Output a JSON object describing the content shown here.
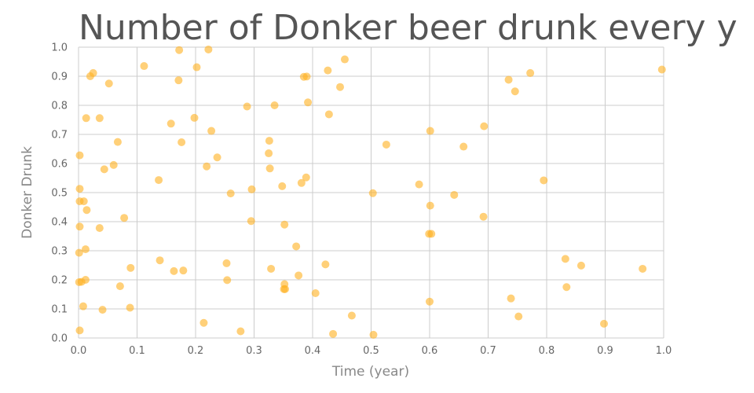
{
  "chart_data": {
    "type": "scatter",
    "title": "Number of Donker beer drunk every y",
    "xlabel": "Time (year)",
    "ylabel": "Donker Drunk",
    "xlim": [
      0,
      1
    ],
    "ylim": [
      0,
      1
    ],
    "xticks": [
      "0.0",
      "0.1",
      "0.2",
      "0.3",
      "0.4",
      "0.5",
      "0.6",
      "0.7",
      "0.8",
      "0.9",
      "1.0"
    ],
    "yticks": [
      "0.0",
      "0.1",
      "0.2",
      "0.3",
      "0.4",
      "0.5",
      "0.6",
      "0.7",
      "0.8",
      "0.9",
      "1.0"
    ],
    "grid": true,
    "legend": "none",
    "color": "#ffb020",
    "points": [
      [
        0.172,
        0.99
      ],
      [
        0.222,
        0.992
      ],
      [
        0.455,
        0.958
      ],
      [
        0.997,
        0.923
      ],
      [
        0.112,
        0.935
      ],
      [
        0.202,
        0.931
      ],
      [
        0.025,
        0.911
      ],
      [
        0.02,
        0.9
      ],
      [
        0.385,
        0.898
      ],
      [
        0.39,
        0.899
      ],
      [
        0.426,
        0.92
      ],
      [
        0.772,
        0.911
      ],
      [
        0.735,
        0.888
      ],
      [
        0.052,
        0.875
      ],
      [
        0.171,
        0.886
      ],
      [
        0.447,
        0.863
      ],
      [
        0.746,
        0.848
      ],
      [
        0.288,
        0.796
      ],
      [
        0.335,
        0.8
      ],
      [
        0.392,
        0.81
      ],
      [
        0.013,
        0.756
      ],
      [
        0.036,
        0.756
      ],
      [
        0.198,
        0.757
      ],
      [
        0.428,
        0.769
      ],
      [
        0.158,
        0.737
      ],
      [
        0.227,
        0.712
      ],
      [
        0.601,
        0.712
      ],
      [
        0.693,
        0.728
      ],
      [
        0.067,
        0.674
      ],
      [
        0.176,
        0.673
      ],
      [
        0.326,
        0.678
      ],
      [
        0.526,
        0.665
      ],
      [
        0.658,
        0.658
      ],
      [
        0.002,
        0.628
      ],
      [
        0.237,
        0.621
      ],
      [
        0.325,
        0.635
      ],
      [
        0.06,
        0.595
      ],
      [
        0.044,
        0.58
      ],
      [
        0.219,
        0.59
      ],
      [
        0.327,
        0.583
      ],
      [
        0.389,
        0.552
      ],
      [
        0.137,
        0.543
      ],
      [
        0.795,
        0.542
      ],
      [
        0.381,
        0.533
      ],
      [
        0.348,
        0.522
      ],
      [
        0.582,
        0.528
      ],
      [
        0.002,
        0.513
      ],
      [
        0.296,
        0.511
      ],
      [
        0.26,
        0.497
      ],
      [
        0.503,
        0.498
      ],
      [
        0.642,
        0.492
      ],
      [
        0.002,
        0.47
      ],
      [
        0.009,
        0.47
      ],
      [
        0.014,
        0.44
      ],
      [
        0.601,
        0.455
      ],
      [
        0.078,
        0.413
      ],
      [
        0.692,
        0.417
      ],
      [
        0.295,
        0.402
      ],
      [
        0.002,
        0.383
      ],
      [
        0.036,
        0.378
      ],
      [
        0.352,
        0.39
      ],
      [
        0.599,
        0.358
      ],
      [
        0.603,
        0.358
      ],
      [
        0.372,
        0.315
      ],
      [
        0.012,
        0.305
      ],
      [
        0.001,
        0.293
      ],
      [
        0.832,
        0.272
      ],
      [
        0.139,
        0.267
      ],
      [
        0.253,
        0.257
      ],
      [
        0.422,
        0.253
      ],
      [
        0.859,
        0.249
      ],
      [
        0.089,
        0.241
      ],
      [
        0.329,
        0.238
      ],
      [
        0.964,
        0.238
      ],
      [
        0.163,
        0.23
      ],
      [
        0.179,
        0.232
      ],
      [
        0.376,
        0.215
      ],
      [
        0.012,
        0.2
      ],
      [
        0.254,
        0.199
      ],
      [
        0.001,
        0.192
      ],
      [
        0.005,
        0.193
      ],
      [
        0.071,
        0.178
      ],
      [
        0.352,
        0.185
      ],
      [
        0.351,
        0.168
      ],
      [
        0.353,
        0.168
      ],
      [
        0.834,
        0.175
      ],
      [
        0.405,
        0.154
      ],
      [
        0.739,
        0.136
      ],
      [
        0.6,
        0.125
      ],
      [
        0.008,
        0.109
      ],
      [
        0.088,
        0.104
      ],
      [
        0.041,
        0.097
      ],
      [
        0.467,
        0.077
      ],
      [
        0.752,
        0.074
      ],
      [
        0.214,
        0.052
      ],
      [
        0.898,
        0.049
      ],
      [
        0.002,
        0.026
      ],
      [
        0.277,
        0.023
      ],
      [
        0.435,
        0.014
      ],
      [
        0.504,
        0.011
      ]
    ]
  }
}
